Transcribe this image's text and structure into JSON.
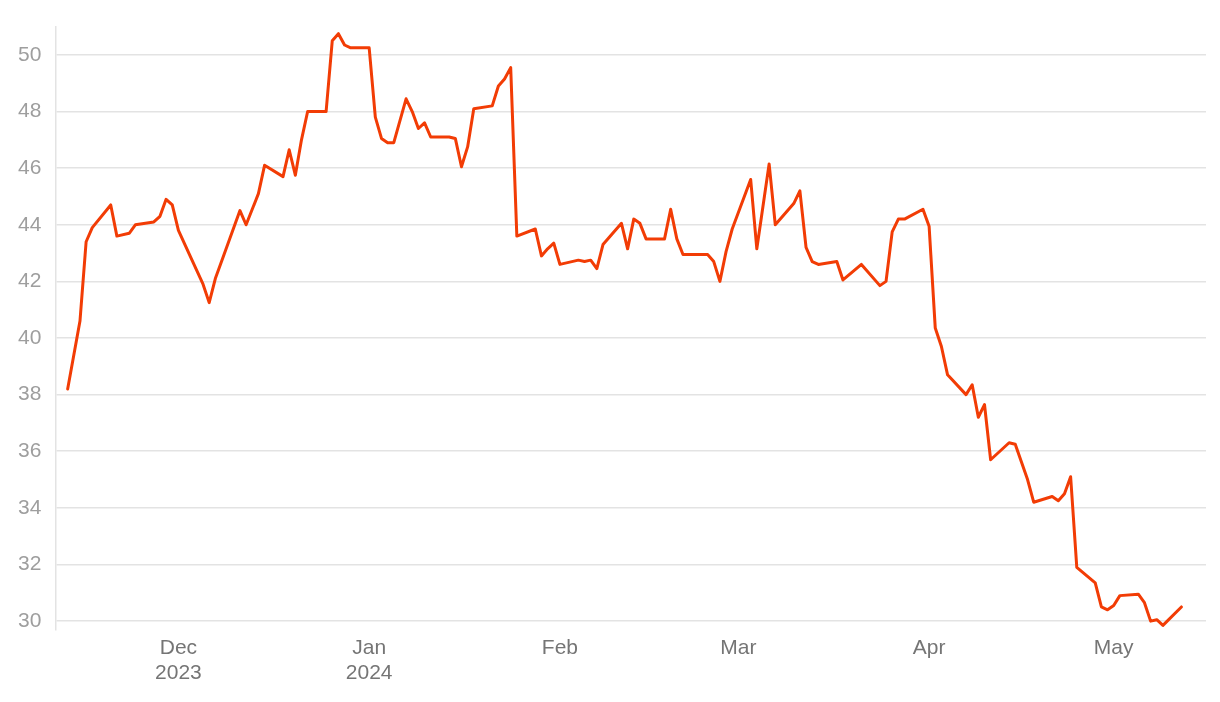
{
  "chart_data": {
    "type": "line",
    "x": [
      "2023-11-13",
      "2023-11-15",
      "2023-11-16",
      "2023-11-17",
      "2023-11-20",
      "2023-11-21",
      "2023-11-23",
      "2023-11-24",
      "2023-11-27",
      "2023-11-28",
      "2023-11-29",
      "2023-11-30",
      "2023-12-01",
      "2023-12-05",
      "2023-12-06",
      "2023-12-07",
      "2023-12-11",
      "2023-12-12",
      "2023-12-14",
      "2023-12-15",
      "2023-12-18",
      "2023-12-19",
      "2023-12-20",
      "2023-12-21",
      "2023-12-22",
      "2023-12-25",
      "2023-12-26",
      "2023-12-27",
      "2023-12-28",
      "2023-12-29",
      "2024-01-01",
      "2024-01-02",
      "2024-01-03",
      "2024-01-04",
      "2024-01-05",
      "2024-01-07",
      "2024-01-08",
      "2024-01-09",
      "2024-01-10",
      "2024-01-11",
      "2024-01-14",
      "2024-01-15",
      "2024-01-16",
      "2024-01-17",
      "2024-01-18",
      "2024-01-21",
      "2024-01-22",
      "2024-01-23",
      "2024-01-24",
      "2024-01-25",
      "2024-01-28",
      "2024-01-29",
      "2024-01-30",
      "2024-01-31",
      "2024-02-01",
      "2024-02-04",
      "2024-02-05",
      "2024-02-06",
      "2024-02-07",
      "2024-02-08",
      "2024-02-11",
      "2024-02-12",
      "2024-02-13",
      "2024-02-14",
      "2024-02-15",
      "2024-02-18",
      "2024-02-19",
      "2024-02-20",
      "2024-02-21",
      "2024-02-25",
      "2024-02-26",
      "2024-02-27",
      "2024-02-28",
      "2024-02-29",
      "2024-03-03",
      "2024-03-04",
      "2024-03-06",
      "2024-03-07",
      "2024-03-10",
      "2024-03-11",
      "2024-03-12",
      "2024-03-13",
      "2024-03-14",
      "2024-03-17",
      "2024-03-18",
      "2024-03-21",
      "2024-03-24",
      "2024-03-25",
      "2024-03-26",
      "2024-03-27",
      "2024-03-28",
      "2024-03-31",
      "2024-04-01",
      "2024-04-02",
      "2024-04-03",
      "2024-04-04",
      "2024-04-07",
      "2024-04-08",
      "2024-04-09",
      "2024-04-10",
      "2024-04-11",
      "2024-04-14",
      "2024-04-15",
      "2024-04-17",
      "2024-04-18",
      "2024-04-21",
      "2024-04-22",
      "2024-04-23",
      "2024-04-24",
      "2024-04-25",
      "2024-04-28",
      "2024-04-29",
      "2024-04-30",
      "2024-05-01",
      "2024-05-02",
      "2024-05-05",
      "2024-05-06",
      "2024-05-07",
      "2024-05-08",
      "2024-05-09",
      "2024-05-12"
    ],
    "series": [
      {
        "color": "#f23c05",
        "values": [
          38.2,
          40.6,
          43.4,
          43.9,
          44.7,
          43.6,
          43.7,
          44.0,
          44.1,
          44.3,
          44.9,
          44.7,
          43.8,
          41.9,
          41.25,
          42.1,
          44.5,
          44.0,
          45.1,
          46.1,
          45.7,
          46.65,
          45.75,
          47.0,
          48.0,
          48.0,
          50.5,
          50.75,
          50.35,
          50.25,
          50.25,
          47.8,
          47.05,
          46.9,
          46.9,
          48.45,
          48.0,
          47.4,
          47.6,
          47.1,
          47.1,
          47.05,
          46.05,
          46.75,
          48.1,
          48.2,
          48.9,
          49.15,
          49.55,
          43.6,
          43.85,
          42.9,
          43.15,
          43.35,
          42.6,
          42.75,
          42.7,
          42.75,
          42.45,
          43.3,
          44.05,
          43.15,
          44.2,
          44.05,
          43.5,
          43.5,
          44.55,
          43.5,
          42.95,
          42.95,
          42.7,
          42.0,
          43.05,
          43.85,
          45.6,
          43.15,
          46.15,
          44.0,
          44.75,
          45.2,
          43.2,
          42.7,
          42.6,
          42.7,
          42.05,
          42.6,
          41.85,
          42.0,
          43.75,
          44.2,
          44.2,
          44.55,
          43.95,
          40.35,
          39.7,
          38.7,
          38.0,
          38.35,
          37.2,
          37.65,
          35.7,
          36.3,
          36.25,
          35.0,
          34.2,
          34.4,
          34.25,
          34.5,
          35.1,
          31.9,
          31.35,
          30.5,
          30.4,
          30.55,
          30.9,
          30.95,
          30.65,
          30.0,
          30.05,
          29.85,
          30.5
        ]
      }
    ],
    "xlim": [
      "2023-11-11",
      "2024-05-16"
    ],
    "xticks": [
      {
        "value": "2023-12-01",
        "label": "Dec\n2023"
      },
      {
        "value": "2024-01-01",
        "label": "Jan\n2024"
      },
      {
        "value": "2024-02-01",
        "label": "Feb"
      },
      {
        "value": "2024-03-01",
        "label": "Mar"
      },
      {
        "value": "2024-04-01",
        "label": "Apr"
      },
      {
        "value": "2024-05-01",
        "label": "May"
      }
    ],
    "ylim": [
      29.7,
      51
    ],
    "yticks": [
      30,
      32,
      34,
      36,
      38,
      40,
      42,
      44,
      46,
      48,
      50
    ],
    "grid": "y",
    "legend": false,
    "marker": "none",
    "line_style": "solid"
  }
}
